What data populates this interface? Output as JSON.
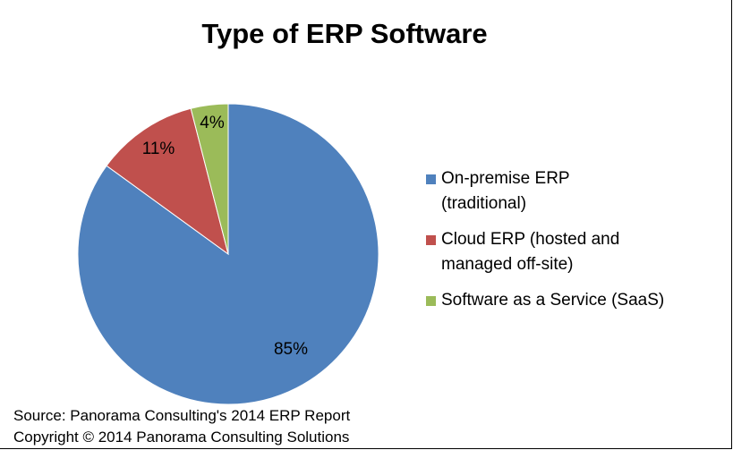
{
  "chart_data": {
    "type": "pie",
    "title": "Type of ERP Software",
    "categories": [
      "On-premise ERP (traditional)",
      "Cloud ERP (hosted and managed off-site)",
      "Software as a Service (SaaS)"
    ],
    "values": [
      85,
      11,
      4
    ],
    "labels": [
      "85%",
      "11%",
      "4%"
    ],
    "colors": [
      "#4F81BD",
      "#C0504D",
      "#9BBB59"
    ],
    "legend_position": "right"
  },
  "legend": {
    "items": [
      {
        "line1": "On-premise ERP",
        "line2": "(traditional)",
        "color": "#4F81BD"
      },
      {
        "line1": "Cloud ERP (hosted and",
        "line2": "managed off-site)",
        "color": "#C0504D"
      },
      {
        "line1": "Software as a Service (SaaS)",
        "line2": "",
        "color": "#9BBB59"
      }
    ]
  },
  "footer": {
    "source": "Source: Panorama Consulting's 2014 ERP Report",
    "copyright": "Copyright © 2014 Panorama Consulting Solutions"
  }
}
